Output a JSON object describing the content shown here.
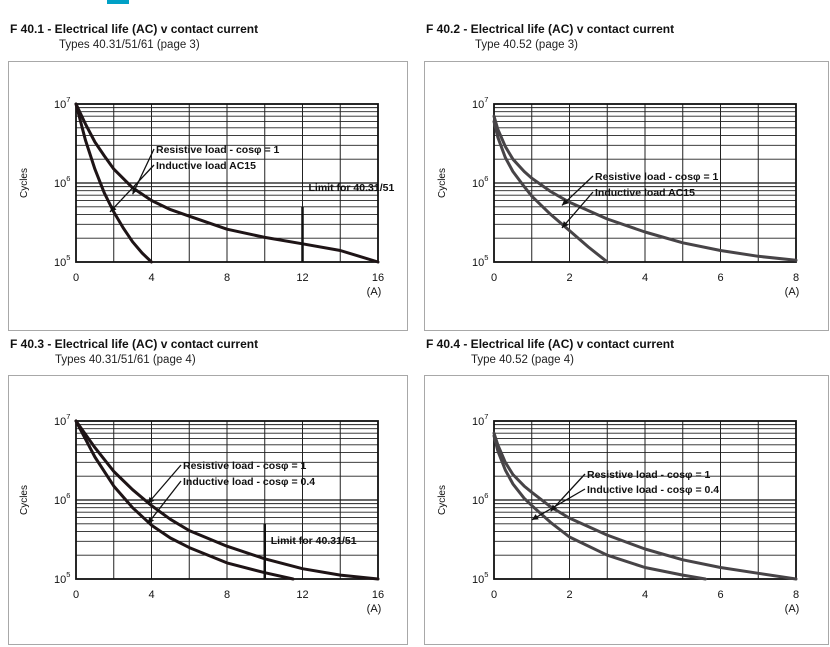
{
  "accent_color": "#00a0c6",
  "chart_data": [
    {
      "id": "f401",
      "type": "line",
      "title": "F 40.1 -  Electrical life (AC) v contact current",
      "subtitle": "Types 40.31/51/61 (page 3)",
      "xlabel": "(A)",
      "ylabel": "Cycles",
      "xlim": [
        0,
        16
      ],
      "ylim": [
        100000,
        10000000
      ],
      "yscale": "log",
      "grid": true,
      "x_ticks": [
        "0",
        "4",
        "8",
        "12",
        "16"
      ],
      "y_ticks": [
        {
          "base": "10",
          "exp": "7"
        },
        {
          "base": "10",
          "exp": "6"
        },
        {
          "base": "10",
          "exp": "5"
        }
      ],
      "series": [
        {
          "name": "Resistive load - cosφ = 1",
          "x": [
            0,
            0.5,
            1,
            1.5,
            2,
            3,
            4,
            5,
            6,
            8,
            10,
            12,
            14,
            16
          ],
          "y": [
            10000000,
            5600000,
            3300000,
            2200000,
            1500000,
            870000,
            600000,
            460000,
            380000,
            260000,
            205000,
            170000,
            140000,
            100000
          ]
        },
        {
          "name": "Inductive load AC15",
          "x": [
            0,
            0.5,
            1,
            1.5,
            2,
            2.5,
            3,
            3.5,
            4
          ],
          "y": [
            10000000,
            3500000,
            1500000,
            750000,
            430000,
            270000,
            180000,
            130000,
            100000
          ]
        }
      ],
      "annotations": [
        {
          "text": "Limit for 40.31/51",
          "x": 12,
          "y_from": 100000,
          "y_to": 500000
        }
      ],
      "annotation_targets": [
        [
          3.0,
          720000
        ],
        [
          1.8,
          430000
        ]
      ]
    },
    {
      "id": "f402",
      "type": "line",
      "title": "F 40.2 -  Electrical life (AC) v contact current",
      "subtitle": "Type 40.52 (page 3)",
      "xlabel": "(A)",
      "ylabel": "Cycles",
      "xlim": [
        0,
        8
      ],
      "ylim": [
        100000,
        10000000
      ],
      "yscale": "log",
      "grid": true,
      "x_ticks": [
        "0",
        "2",
        "4",
        "6",
        "8"
      ],
      "y_ticks": [
        {
          "base": "10",
          "exp": "7"
        },
        {
          "base": "10",
          "exp": "6"
        },
        {
          "base": "10",
          "exp": "5"
        }
      ],
      "series": [
        {
          "name": "Resistive load - cosφ = 1",
          "x": [
            0,
            0.1,
            0.3,
            0.5,
            0.8,
            1,
            1.5,
            2,
            3,
            4,
            5,
            6,
            7,
            8
          ],
          "y": [
            7000000,
            4800000,
            2900000,
            2000000,
            1400000,
            1150000,
            780000,
            570000,
            350000,
            240000,
            175000,
            140000,
            118000,
            105000
          ]
        },
        {
          "name": "Inductive load AC15",
          "x": [
            0,
            0.1,
            0.3,
            0.5,
            0.8,
            1,
            1.5,
            2,
            2.5,
            3
          ],
          "y": [
            6000000,
            3800000,
            2100000,
            1400000,
            900000,
            680000,
            400000,
            250000,
            155000,
            100000
          ]
        }
      ],
      "annotations": [],
      "annotation_targets": [
        [
          1.8,
          520000
        ],
        [
          1.8,
          270000
        ]
      ]
    },
    {
      "id": "f403",
      "type": "line",
      "title": "F 40.3 - Electrical life (AC) v contact current",
      "subtitle": "Types 40.31/51/61 (page 4)",
      "xlabel": "(A)",
      "ylabel": "Cycles",
      "xlim": [
        0,
        16
      ],
      "ylim": [
        100000,
        10000000
      ],
      "yscale": "log",
      "grid": true,
      "x_ticks": [
        "0",
        "4",
        "8",
        "12",
        "16"
      ],
      "y_ticks": [
        {
          "base": "10",
          "exp": "7"
        },
        {
          "base": "10",
          "exp": "6"
        },
        {
          "base": "10",
          "exp": "5"
        }
      ],
      "series": [
        {
          "name": "Resistive load - cosφ = 1",
          "x": [
            0,
            1,
            2,
            3,
            4,
            5,
            6,
            8,
            10,
            12,
            14,
            16
          ],
          "y": [
            10000000,
            4600000,
            2300000,
            1350000,
            850000,
            570000,
            410000,
            260000,
            180000,
            135000,
            112000,
            100000
          ]
        },
        {
          "name": "Inductive load - cosφ = 0.4",
          "x": [
            0,
            1,
            2,
            3,
            4,
            5,
            6,
            8,
            10,
            11.5
          ],
          "y": [
            10000000,
            3500000,
            1500000,
            800000,
            480000,
            330000,
            250000,
            160000,
            120000,
            100000
          ]
        }
      ],
      "annotations": [
        {
          "text": "Limit for 40.31/51",
          "x": 10,
          "y_from": 100000,
          "y_to": 500000
        }
      ],
      "annotation_targets": [
        [
          3.8,
          900000
        ],
        [
          3.8,
          500000
        ]
      ]
    },
    {
      "id": "f404",
      "type": "line",
      "title": "F 40.4 - Electrical life (AC) v contact current",
      "subtitle": "Type 40.52 (page 4)",
      "xlabel": "(A)",
      "ylabel": "Cycles",
      "xlim": [
        0,
        8
      ],
      "ylim": [
        100000,
        10000000
      ],
      "yscale": "log",
      "grid": true,
      "x_ticks": [
        "0",
        "2",
        "4",
        "6",
        "8"
      ],
      "y_ticks": [
        {
          "base": "10",
          "exp": "7"
        },
        {
          "base": "10",
          "exp": "6"
        },
        {
          "base": "10",
          "exp": "5"
        }
      ],
      "series": [
        {
          "name": "Resistive load - cosφ = 1",
          "x": [
            0,
            0.1,
            0.3,
            0.5,
            0.8,
            1,
            1.5,
            2,
            3,
            4,
            5,
            6,
            7,
            8
          ],
          "y": [
            7000000,
            5000000,
            3000000,
            2100000,
            1500000,
            1250000,
            820000,
            590000,
            360000,
            240000,
            175000,
            140000,
            118000,
            100000
          ]
        },
        {
          "name": "Inductive load - cosφ = 0.4",
          "x": [
            0,
            0.1,
            0.3,
            0.5,
            0.8,
            1,
            1.5,
            2,
            3,
            4,
            5,
            5.6
          ],
          "y": [
            6500000,
            4200000,
            2400000,
            1600000,
            1050000,
            850000,
            520000,
            340000,
            200000,
            140000,
            112000,
            100000
          ]
        }
      ],
      "annotations": [],
      "annotation_targets": [
        [
          1.5,
          720000
        ],
        [
          1.0,
          560000
        ]
      ]
    }
  ]
}
